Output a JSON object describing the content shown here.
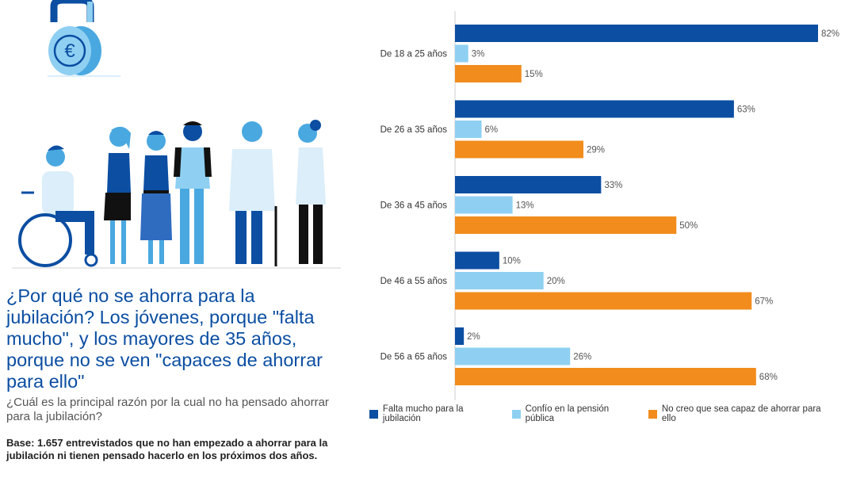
{
  "headline": "¿Por qué no se ahorra para la jubilación? Los jóvenes, porque \"falta mucho\", y los mayores de 35 años, porque no se ven \"capaces de ahorrar para ello\"",
  "question": "¿Cuál es la principal razón por la cual no ha pensado ahorrar para la jubilación?",
  "base": "Base: 1.657 entrevistados que no han empezado a ahorrar para la jubilación ni tienen pensado hacerlo en los próximos dos años.",
  "colors": {
    "series1": "#0b4ea2",
    "series2": "#8fd0f2",
    "series3": "#f28c1c",
    "axis": "#cccccc"
  },
  "chart_data": {
    "type": "bar",
    "orientation": "horizontal",
    "categories": [
      "De 18 a 25 años",
      "De 26 a 35 años",
      "De 36 a 45 años",
      "De 46 a 55 años",
      "De 56 a 65 años"
    ],
    "series": [
      {
        "name": "Falta mucho para la jubilación",
        "values": [
          82,
          63,
          33,
          10,
          2
        ]
      },
      {
        "name": "Confío en la pensión pública",
        "values": [
          3,
          6,
          13,
          20,
          26
        ]
      },
      {
        "name": "No creo que sea capaz de ahorrar para ello",
        "values": [
          15,
          29,
          50,
          67,
          68
        ]
      }
    ],
    "value_suffix": "%",
    "xlim": [
      0,
      82
    ],
    "grid": false,
    "legend_position": "bottom"
  }
}
